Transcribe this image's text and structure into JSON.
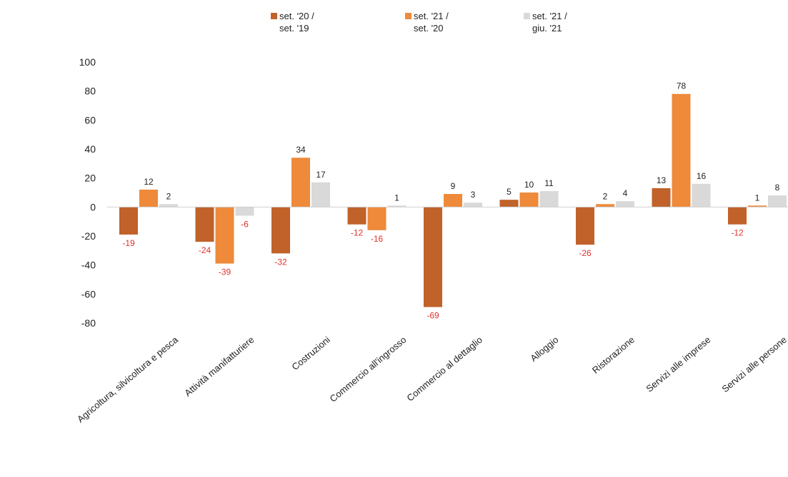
{
  "chart_data": {
    "type": "bar",
    "categories": [
      "Agricoltura, silvicoltura e pesca",
      "Attività manifatturiere",
      "Costruzioni",
      "Commercio all'ingrosso",
      "Commercio al dettaglio",
      "Alloggio",
      "Ristorazione",
      "Servizi alle imprese",
      "Servizi alle persone"
    ],
    "series": [
      {
        "name": "set. '20 / set. '19",
        "name_lines": [
          "set. '20 /",
          "set. '19"
        ],
        "color": "#c0622a",
        "values": [
          -19,
          -24,
          -32,
          -12,
          -69,
          5,
          -26,
          13,
          -12
        ]
      },
      {
        "name": "set. '21 / set. '20",
        "name_lines": [
          "set. '21 /",
          "set. '20"
        ],
        "color": "#ee8a3a",
        "values": [
          12,
          -39,
          34,
          -16,
          9,
          10,
          2,
          78,
          1
        ]
      },
      {
        "name": "set. '21 / giu. '21",
        "name_lines": [
          "set. '21 /",
          "giu. '21"
        ],
        "color": "#d9d9d9",
        "values": [
          2,
          -6,
          17,
          1,
          3,
          11,
          4,
          16,
          8
        ]
      }
    ],
    "yticks": [
      100,
      80,
      60,
      40,
      20,
      0,
      -20,
      -40,
      -60,
      -80
    ],
    "ylim": [
      -80,
      100
    ],
    "grid": false,
    "legend_position": "top",
    "title": "",
    "xlabel": "",
    "ylabel": "",
    "label_colors": {
      "positive": "#222222",
      "negative": "#e0312b"
    }
  }
}
